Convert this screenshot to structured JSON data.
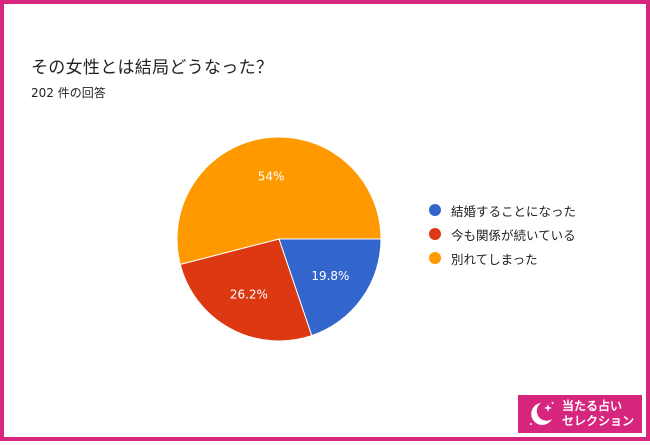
{
  "question": {
    "title": "その女性とは結局どうなった？",
    "responses": "202 件の回答"
  },
  "chart_data": {
    "type": "pie",
    "slices": [
      {
        "label": "結婚することになった",
        "value": 19.8,
        "display": "19.8%",
        "color": "#3366cc"
      },
      {
        "label": "今も関係が続いている",
        "value": 26.2,
        "display": "26.2%",
        "color": "#dc3912"
      },
      {
        "label": "別れてしまった",
        "value": 54.0,
        "display": "54%",
        "color": "#ff9900"
      }
    ],
    "legend_position": "right"
  },
  "badge": {
    "line1": "当たる占い",
    "line2": "セレクション",
    "icon": "moon-stars-icon"
  }
}
